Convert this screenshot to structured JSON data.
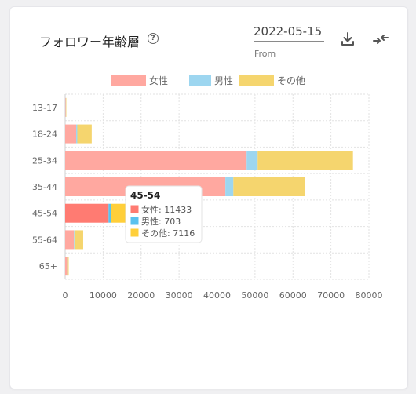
{
  "header": {
    "title": "フォロワー年齢層",
    "help_icon": "question-circle-icon",
    "date_value": "2022-05-15",
    "date_label": "From",
    "download_icon": "download-icon",
    "compare_icon": "compare-arrows-icon"
  },
  "chart_data": {
    "type": "bar",
    "orientation": "horizontal",
    "stacked": true,
    "categories": [
      "13-17",
      "18-24",
      "25-34",
      "35-44",
      "45-54",
      "55-64",
      "65+"
    ],
    "series": [
      {
        "name": "女性",
        "color": "#ffa8a0",
        "values": [
          150,
          2900,
          47800,
          42200,
          11433,
          2300,
          500
        ]
      },
      {
        "name": "男性",
        "color": "#9dd6f0",
        "values": [
          30,
          300,
          2900,
          2100,
          703,
          150,
          30
        ]
      },
      {
        "name": "その他",
        "color": "#f5d56e",
        "values": [
          120,
          3800,
          25100,
          18800,
          7116,
          2300,
          400
        ]
      }
    ],
    "xlim": [
      0,
      80000
    ],
    "xticks": [
      0,
      10000,
      20000,
      30000,
      40000,
      50000,
      60000,
      70000,
      80000
    ],
    "grid": true,
    "legend": "top",
    "tooltip": {
      "title": "45-54",
      "items": [
        {
          "label": "女性: 11433",
          "color": "#ff7b72"
        },
        {
          "label": "男性: 703",
          "color": "#5bc2ef"
        },
        {
          "label": "その他: 7116",
          "color": "#ffcf3a"
        }
      ]
    }
  }
}
